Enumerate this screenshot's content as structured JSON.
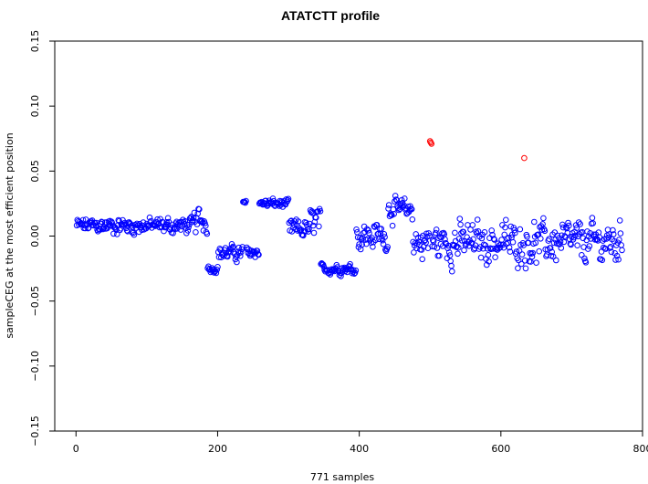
{
  "chart_data": {
    "type": "scatter",
    "title": "ATATCTT profile",
    "xlabel": "771 samples",
    "ylabel": "sampleCEG at the most efficient position",
    "xlim": [
      -30,
      800
    ],
    "ylim": [
      -0.15,
      0.15
    ],
    "x_ticks": [
      0,
      200,
      400,
      600,
      800
    ],
    "y_ticks": [
      -0.15,
      -0.1,
      -0.05,
      0.0,
      0.05,
      0.1,
      0.15
    ],
    "x_tick_labels": [
      "0",
      "200",
      "400",
      "600",
      "800"
    ],
    "y_tick_labels": [
      "−0.15",
      "−0.10",
      "−0.05",
      "0.00",
      "0.05",
      "0.10",
      "0.15"
    ],
    "grid": false,
    "legend": "none",
    "marker": "open-circle",
    "colors": {
      "normal": "#0000ff",
      "highlight": "#ff0000",
      "axis": "#000000"
    },
    "n_samples": 771,
    "segments": [
      {
        "start": 1,
        "end": 165,
        "center": 0.008,
        "spread": 0.009
      },
      {
        "start": 166,
        "end": 185,
        "center": 0.012,
        "spread": 0.014
      },
      {
        "start": 186,
        "end": 200,
        "center": -0.025,
        "spread": 0.004
      },
      {
        "start": 201,
        "end": 235,
        "center": -0.013,
        "spread": 0.008
      },
      {
        "start": 236,
        "end": 240,
        "center": 0.026,
        "spread": 0.002
      },
      {
        "start": 241,
        "end": 258,
        "center": -0.012,
        "spread": 0.007
      },
      {
        "start": 259,
        "end": 300,
        "center": 0.025,
        "spread": 0.005
      },
      {
        "start": 301,
        "end": 330,
        "center": 0.005,
        "spread": 0.012
      },
      {
        "start": 331,
        "end": 345,
        "center": 0.012,
        "spread": 0.016
      },
      {
        "start": 346,
        "end": 395,
        "center": -0.025,
        "spread": 0.006
      },
      {
        "start": 396,
        "end": 440,
        "center": 0.0,
        "spread": 0.016
      },
      {
        "start": 441,
        "end": 475,
        "center": 0.02,
        "spread": 0.012
      },
      {
        "start": 476,
        "end": 771,
        "center": -0.005,
        "spread": 0.022
      }
    ],
    "highlighted_points": [
      {
        "x": 500,
        "y": 0.073
      },
      {
        "x": 501,
        "y": 0.072
      },
      {
        "x": 502,
        "y": 0.071
      },
      {
        "x": 633,
        "y": 0.06
      }
    ]
  }
}
